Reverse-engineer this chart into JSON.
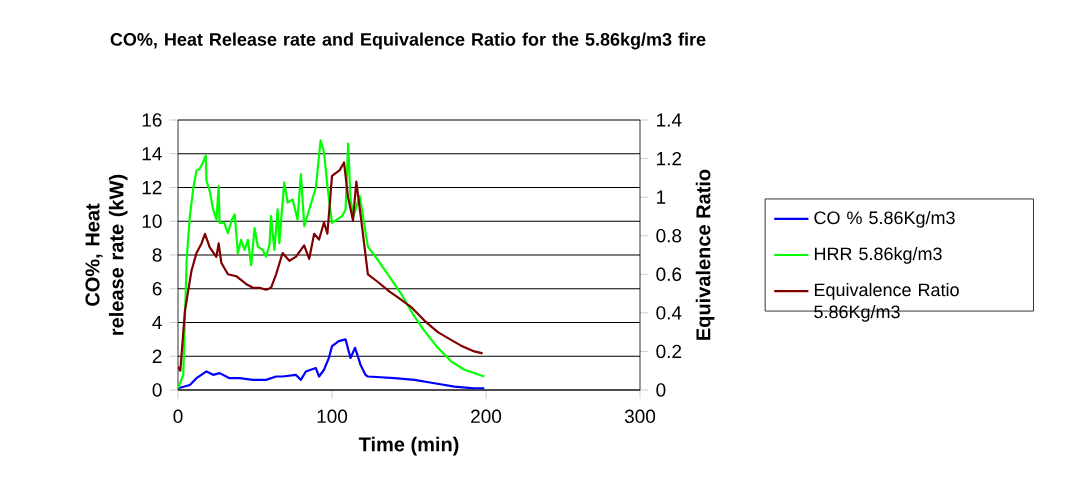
{
  "chart_data": {
    "type": "line",
    "title": "CO%, Heat Release rate and Equivalence Ratio for the 5.86kg/m3 fire",
    "xlabel": "Time (min)",
    "ylabel": "CO%, Heat release rate (kW)",
    "y2label": "Equivalence Ratio",
    "xlim": [
      0,
      300
    ],
    "xticks": [
      0,
      100,
      200,
      300
    ],
    "ylim": [
      0,
      16
    ],
    "yticks": [
      0,
      2,
      4,
      6,
      8,
      10,
      12,
      14,
      16
    ],
    "y2lim": [
      0,
      1.4
    ],
    "y2ticks": [
      0,
      0.2,
      0.4,
      0.6,
      0.8,
      1,
      1.2,
      1.4
    ],
    "grid": "y",
    "legend": "right",
    "marker": "none",
    "series": [
      {
        "name": "CO % 5.86Kg/m3",
        "color": "#0000ff",
        "x": [
          0,
          7.7,
          12,
          18.5,
          22.8,
          27,
          33.5,
          40,
          48.6,
          57.2,
          63.7,
          68,
          76.5,
          79.8,
          83,
          89.5,
          91.6,
          94.8,
          98,
          100,
          104.4,
          108.8,
          112,
          115,
          118.5,
          121.7,
          123.3,
          140.6,
          153.6,
          166.5,
          179.5,
          192.4,
          198.9
        ],
        "values": [
          0.1,
          0.3,
          0.7,
          1.1,
          0.9,
          1.0,
          0.7,
          0.7,
          0.6,
          0.6,
          0.8,
          0.8,
          0.9,
          0.6,
          1.1,
          1.3,
          0.8,
          1.2,
          1.9,
          2.6,
          2.9,
          3.0,
          1.9,
          2.5,
          1.5,
          0.9,
          0.8,
          0.7,
          0.6,
          0.4,
          0.2,
          0.1,
          0.1
        ]
      },
      {
        "name": "HRR 5.86kg/m3",
        "color": "#00ff00",
        "x": [
          0,
          3.4,
          5.6,
          7.7,
          10,
          12,
          14,
          16.3,
          18,
          18.5,
          20.6,
          22.8,
          25,
          26.4,
          27,
          30,
          32.4,
          35,
          36.8,
          38.9,
          41,
          43.2,
          45.4,
          47.5,
          49.7,
          51.8,
          55,
          57.2,
          59.4,
          60.4,
          62.6,
          64.7,
          65.8,
          69,
          71.2,
          74.4,
          77.6,
          79.8,
          82,
          85.2,
          89.5,
          92.6,
          94.8,
          97,
          100,
          106.6,
          108.8,
          110.5,
          112,
          114,
          118,
          123.3,
          129.8,
          137.4,
          144.9,
          152.5,
          160,
          168.7,
          177.3,
          186,
          198.9
        ],
        "values": [
          0.1,
          0.9,
          7.7,
          10.3,
          12,
          13,
          13.1,
          13.5,
          13.9,
          12.4,
          11.8,
          10.7,
          10.1,
          12.1,
          9.9,
          9.9,
          9.3,
          10.1,
          10.4,
          8.1,
          8.9,
          8.3,
          8.9,
          7.4,
          9.6,
          8.5,
          8.3,
          7.9,
          8.6,
          10.3,
          8.3,
          10.7,
          8.7,
          12.3,
          11.1,
          11.3,
          10.1,
          12.8,
          9.7,
          10.7,
          12,
          14.8,
          14.1,
          12.1,
          9.9,
          10.3,
          10.7,
          14.6,
          11.3,
          10.3,
          11.5,
          8.5,
          7.7,
          6.7,
          5.7,
          4.5,
          3.5,
          2.5,
          1.7,
          1.2,
          0.8
        ]
      },
      {
        "name": "Equivalence Ratio 5.86Kg/m3",
        "color": "#800000",
        "axis": "y2",
        "x": [
          0,
          1.5,
          4.5,
          8.8,
          12,
          15.3,
          17.5,
          20.6,
          24.9,
          26.4,
          28.1,
          32.4,
          37.8,
          44.2,
          48.6,
          52.9,
          57.2,
          60.4,
          63.7,
          67.9,
          72.3,
          76.5,
          81.9,
          85.2,
          88.4,
          91.6,
          94.8,
          97,
          100,
          105,
          107.8,
          110.4,
          113.6,
          115.8,
          119,
          123.3,
          129.8,
          137.4,
          142.8,
          151.4,
          160,
          168.7,
          177.3,
          183.8,
          192.4,
          197.8
        ],
        "values": [
          0.12,
          0.1,
          0.41,
          0.62,
          0.71,
          0.76,
          0.81,
          0.74,
          0.69,
          0.76,
          0.66,
          0.6,
          0.59,
          0.55,
          0.53,
          0.53,
          0.52,
          0.53,
          0.6,
          0.71,
          0.67,
          0.69,
          0.75,
          0.68,
          0.81,
          0.78,
          0.87,
          0.81,
          1.11,
          1.14,
          1.18,
          1.0,
          0.88,
          1.08,
          0.88,
          0.6,
          0.56,
          0.51,
          0.48,
          0.43,
          0.36,
          0.3,
          0.26,
          0.23,
          0.2,
          0.19
        ]
      }
    ]
  }
}
